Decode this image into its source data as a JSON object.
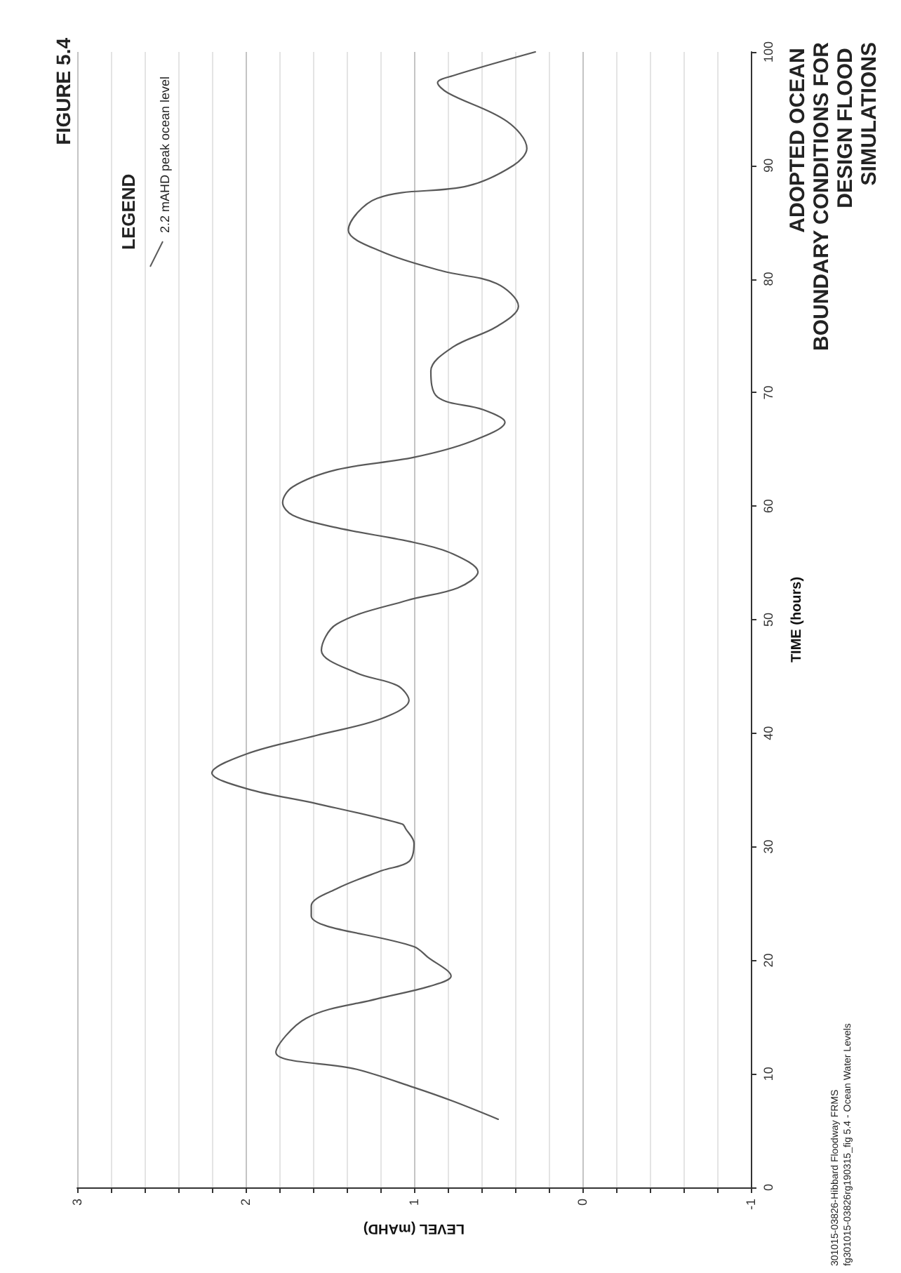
{
  "chart_data": {
    "type": "line",
    "title": "ADOPTED OCEAN BOUNDARY CONDITIONS FOR DESIGN FLOOD SIMULATIONS",
    "xlabel": "LEVEL (mAHD)",
    "ylabel": "TIME (hours)",
    "legend_title": "LEGEND",
    "annotations": [
      "FIGURE 5.4",
      "301015-03826-Hibbard Floodway FRMS",
      "fg301015-03826rg190315_fig 5.4 - Ocean Water Levels"
    ],
    "series": [
      {
        "name": "2.2 mAHD peak ocean level",
        "color": "#595959",
        "x": [
          0.5,
          0.77,
          1.0,
          1.34,
          1.82,
          1.64,
          1.22,
          0.91,
          0.78,
          0.92,
          1.0,
          1.61,
          1.61,
          1.46,
          1.19,
          1.03,
          1.0,
          1.05,
          1.07,
          1.58,
          1.99,
          2.2,
          1.99,
          1.58,
          1.19,
          1.03,
          1.1,
          1.34,
          1.55,
          1.46,
          1.04,
          0.74,
          0.62,
          0.77,
          1.0,
          1.46,
          1.72,
          1.78,
          1.72,
          1.46,
          1.0,
          0.66,
          0.46,
          0.59,
          0.86,
          0.9,
          0.77,
          0.51,
          0.38,
          0.51,
          0.83,
          1.19,
          1.39,
          1.22,
          0.68,
          0.41,
          0.33,
          0.45,
          0.8,
          0.86,
          0.77,
          0.28
        ],
        "values": [
          6,
          7.6,
          8.8,
          10.4,
          11.9,
          14.9,
          16.6,
          17.7,
          18.6,
          20.3,
          21.2,
          23.9,
          24.8,
          26.3,
          27.9,
          28.7,
          30.3,
          31.6,
          32.0,
          33.8,
          35.1,
          36.5,
          38.2,
          39.8,
          41.3,
          42.9,
          44.2,
          45.3,
          47.3,
          49.6,
          51.7,
          52.8,
          54.2,
          55.8,
          56.8,
          58.1,
          59.2,
          60.3,
          61.7,
          63.2,
          64.3,
          65.7,
          67.4,
          68.5,
          69.6,
          71.9,
          74.0,
          75.8,
          77.6,
          79.6,
          80.7,
          82.4,
          84.3,
          87.1,
          88.2,
          90.0,
          91.5,
          93.9,
          96.4,
          97.3,
          97.9,
          100
        ]
      }
    ],
    "xlim": [
      3,
      -1
    ],
    "xticks": [
      3,
      {
        "value": 2.8,
        "label": null
      },
      {
        "value": 2.6,
        "label": null
      },
      {
        "value": 2.4,
        "label": null
      },
      {
        "value": 2.2,
        "label": null
      },
      2,
      {
        "value": 1.8,
        "label": null
      },
      {
        "value": 1.6,
        "label": null
      },
      {
        "value": 1.4,
        "label": null
      },
      {
        "value": 1.2,
        "label": null
      },
      1,
      {
        "value": 0.8,
        "label": null
      },
      {
        "value": 0.6,
        "label": null
      },
      {
        "value": 0.4,
        "label": null
      },
      {
        "value": 0.2,
        "label": null
      },
      0,
      {
        "value": -0.2,
        "label": null
      },
      {
        "value": -0.4,
        "label": null
      },
      {
        "value": -0.6,
        "label": null
      },
      {
        "value": -0.8,
        "label": null
      },
      -1
    ],
    "ylim": [
      0,
      100
    ],
    "yticks": [
      0,
      10,
      20,
      30,
      40,
      50,
      60,
      70,
      80,
      90,
      100
    ],
    "grid": "x",
    "legend": "top left"
  }
}
